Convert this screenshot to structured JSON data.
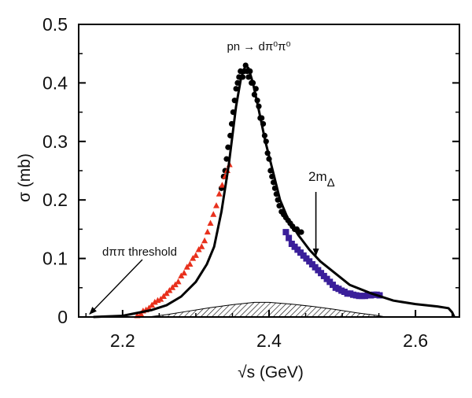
{
  "chart_data": {
    "type": "scatter",
    "title": "pn → dπ⁰π⁰",
    "xlabel": "√s (GeV)",
    "ylabel": "σ (mb)",
    "xlim": [
      2.14,
      2.66
    ],
    "ylim": [
      0,
      0.5
    ],
    "x_ticks": [
      2.2,
      2.4,
      2.6
    ],
    "x_tick_labels": [
      "2.2",
      "2.4",
      "2.6"
    ],
    "y_ticks": [
      0,
      0.1,
      0.2,
      0.3,
      0.4,
      0.5
    ],
    "y_tick_labels": [
      "0",
      "0.1",
      "0.2",
      "0.3",
      "0.4",
      "0.5"
    ],
    "grid": false,
    "colors": {
      "black": "#000000",
      "red": "#e8301c",
      "blue": "#3a1f9a"
    },
    "annotations": {
      "threshold": "dππ threshold",
      "two_m_delta_base": "2m",
      "two_m_delta_sub": "Δ"
    },
    "series": [
      {
        "name": "data-black",
        "marker": "circle",
        "color": "#000000",
        "points": [
          [
            2.335,
            0.22
          ],
          [
            2.338,
            0.24
          ],
          [
            2.34,
            0.25
          ],
          [
            2.342,
            0.27
          ],
          [
            2.344,
            0.29
          ],
          [
            2.347,
            0.31
          ],
          [
            2.349,
            0.33
          ],
          [
            2.351,
            0.35
          ],
          [
            2.353,
            0.37
          ],
          [
            2.355,
            0.39
          ],
          [
            2.357,
            0.4
          ],
          [
            2.359,
            0.41
          ],
          [
            2.361,
            0.42
          ],
          [
            2.364,
            0.41
          ],
          [
            2.366,
            0.42
          ],
          [
            2.368,
            0.43
          ],
          [
            2.37,
            0.42
          ],
          [
            2.372,
            0.41
          ],
          [
            2.374,
            0.42
          ],
          [
            2.376,
            0.4
          ],
          [
            2.378,
            0.4
          ],
          [
            2.38,
            0.38
          ],
          [
            2.382,
            0.39
          ],
          [
            2.384,
            0.37
          ],
          [
            2.386,
            0.36
          ],
          [
            2.388,
            0.34
          ],
          [
            2.39,
            0.34
          ],
          [
            2.392,
            0.33
          ],
          [
            2.394,
            0.31
          ],
          [
            2.396,
            0.3
          ],
          [
            2.398,
            0.28
          ],
          [
            2.4,
            0.27
          ],
          [
            2.402,
            0.25
          ],
          [
            2.404,
            0.24
          ],
          [
            2.406,
            0.23
          ],
          [
            2.408,
            0.22
          ],
          [
            2.41,
            0.21
          ],
          [
            2.412,
            0.2
          ],
          [
            2.414,
            0.19
          ],
          [
            2.417,
            0.18
          ],
          [
            2.42,
            0.175
          ],
          [
            2.423,
            0.17
          ],
          [
            2.426,
            0.165
          ],
          [
            2.429,
            0.16
          ],
          [
            2.432,
            0.155
          ],
          [
            2.435,
            0.15
          ],
          [
            2.438,
            0.15
          ],
          [
            2.441,
            0.145
          ],
          [
            2.444,
            0.145
          ]
        ]
      },
      {
        "name": "data-red",
        "marker": "triangle",
        "color": "#e8301c",
        "points": [
          [
            2.22,
            0.002
          ],
          [
            2.225,
            0.005
          ],
          [
            2.228,
            0.01
          ],
          [
            2.232,
            0.012
          ],
          [
            2.236,
            0.015
          ],
          [
            2.24,
            0.02
          ],
          [
            2.244,
            0.025
          ],
          [
            2.248,
            0.028
          ],
          [
            2.252,
            0.03
          ],
          [
            2.256,
            0.035
          ],
          [
            2.26,
            0.04
          ],
          [
            2.264,
            0.045
          ],
          [
            2.268,
            0.05
          ],
          [
            2.272,
            0.055
          ],
          [
            2.276,
            0.06
          ],
          [
            2.28,
            0.07
          ],
          [
            2.284,
            0.075
          ],
          [
            2.288,
            0.085
          ],
          [
            2.292,
            0.09
          ],
          [
            2.296,
            0.1
          ],
          [
            2.3,
            0.105
          ],
          [
            2.304,
            0.115
          ],
          [
            2.308,
            0.12
          ],
          [
            2.312,
            0.13
          ],
          [
            2.316,
            0.145
          ],
          [
            2.32,
            0.16
          ],
          [
            2.324,
            0.175
          ],
          [
            2.328,
            0.19
          ],
          [
            2.332,
            0.21
          ],
          [
            2.336,
            0.225
          ],
          [
            2.34,
            0.24
          ],
          [
            2.343,
            0.25
          ],
          [
            2.346,
            0.26
          ]
        ]
      },
      {
        "name": "data-blue",
        "marker": "square",
        "color": "#3a1f9a",
        "points": [
          [
            2.423,
            0.145
          ],
          [
            2.427,
            0.135
          ],
          [
            2.431,
            0.125
          ],
          [
            2.435,
            0.12
          ],
          [
            2.439,
            0.115
          ],
          [
            2.443,
            0.11
          ],
          [
            2.447,
            0.105
          ],
          [
            2.451,
            0.1
          ],
          [
            2.455,
            0.095
          ],
          [
            2.459,
            0.09
          ],
          [
            2.463,
            0.085
          ],
          [
            2.467,
            0.08
          ],
          [
            2.471,
            0.075
          ],
          [
            2.475,
            0.07
          ],
          [
            2.479,
            0.065
          ],
          [
            2.483,
            0.06
          ],
          [
            2.487,
            0.055
          ],
          [
            2.491,
            0.05
          ],
          [
            2.495,
            0.048
          ],
          [
            2.499,
            0.045
          ],
          [
            2.503,
            0.043
          ],
          [
            2.507,
            0.04
          ],
          [
            2.511,
            0.04
          ],
          [
            2.515,
            0.038
          ],
          [
            2.519,
            0.037
          ],
          [
            2.523,
            0.036
          ],
          [
            2.527,
            0.036
          ],
          [
            2.531,
            0.036
          ],
          [
            2.535,
            0.037
          ],
          [
            2.539,
            0.037
          ],
          [
            2.543,
            0.038
          ],
          [
            2.547,
            0.038
          ],
          [
            2.551,
            0.037
          ]
        ]
      }
    ],
    "curve": {
      "name": "model-curve",
      "points": [
        [
          2.16,
          0.0
        ],
        [
          2.2,
          0.002
        ],
        [
          2.24,
          0.012
        ],
        [
          2.26,
          0.02
        ],
        [
          2.28,
          0.035
        ],
        [
          2.3,
          0.06
        ],
        [
          2.315,
          0.09
        ],
        [
          2.325,
          0.12
        ],
        [
          2.335,
          0.18
        ],
        [
          2.345,
          0.26
        ],
        [
          2.355,
          0.36
        ],
        [
          2.362,
          0.41
        ],
        [
          2.368,
          0.43
        ],
        [
          2.372,
          0.425
        ],
        [
          2.378,
          0.4
        ],
        [
          2.385,
          0.36
        ],
        [
          2.395,
          0.3
        ],
        [
          2.405,
          0.25
        ],
        [
          2.415,
          0.2
        ],
        [
          2.425,
          0.17
        ],
        [
          2.44,
          0.14
        ],
        [
          2.455,
          0.115
        ],
        [
          2.47,
          0.095
        ],
        [
          2.49,
          0.075
        ],
        [
          2.51,
          0.055
        ],
        [
          2.54,
          0.04
        ],
        [
          2.57,
          0.028
        ],
        [
          2.6,
          0.022
        ],
        [
          2.63,
          0.018
        ],
        [
          2.645,
          0.015
        ],
        [
          2.65,
          0.008
        ],
        [
          2.653,
          0.0
        ]
      ]
    },
    "background": {
      "name": "hatched-background",
      "points": [
        [
          2.235,
          0.0
        ],
        [
          2.26,
          0.004
        ],
        [
          2.29,
          0.01
        ],
        [
          2.32,
          0.016
        ],
        [
          2.35,
          0.021
        ],
        [
          2.38,
          0.025
        ],
        [
          2.4,
          0.025
        ],
        [
          2.43,
          0.022
        ],
        [
          2.46,
          0.018
        ],
        [
          2.49,
          0.013
        ],
        [
          2.52,
          0.007
        ],
        [
          2.545,
          0.003
        ],
        [
          2.56,
          0.0
        ]
      ]
    },
    "arrows": {
      "threshold": {
        "x": 2.155,
        "y": 0.005
      },
      "two_m_delta": {
        "x": 2.464,
        "y": 0.105
      }
    }
  }
}
